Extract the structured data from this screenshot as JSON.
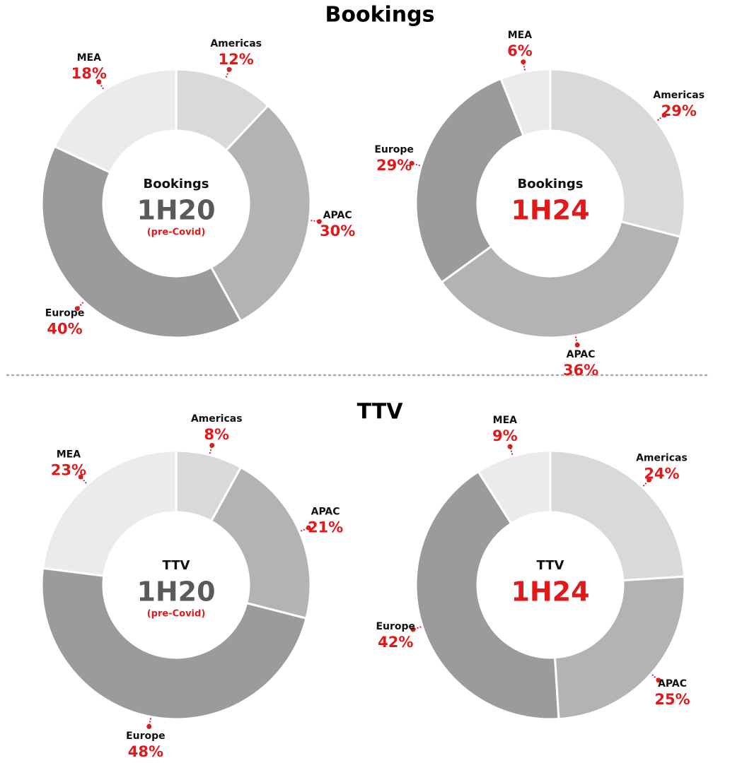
{
  "section_titles": [
    "Bookings",
    "TTV"
  ],
  "chart_data": [
    {
      "type": "donut",
      "center_title": "Bookings",
      "center_label": "1H20",
      "center_note": "(pre-Covid)",
      "center_label_color": "#5a5a5a",
      "categories": [
        "Americas",
        "APAC",
        "Europe",
        "MEA"
      ],
      "values": [
        12,
        30,
        40,
        18
      ],
      "value_labels": [
        "12%",
        "30%",
        "40%",
        "18%"
      ],
      "colors": [
        "#d9d9d9",
        "#b3b3b3",
        "#9b9b9b",
        "#ebebeb"
      ]
    },
    {
      "type": "donut",
      "center_title": "Bookings",
      "center_label": "1H24",
      "center_label_color": "#e0191b",
      "categories": [
        "Americas",
        "APAC",
        "Europe",
        "MEA"
      ],
      "values": [
        29,
        36,
        29,
        6
      ],
      "value_labels": [
        "29%",
        "36%",
        "29%",
        "6%"
      ],
      "colors": [
        "#d9d9d9",
        "#b3b3b3",
        "#9b9b9b",
        "#ebebeb"
      ]
    },
    {
      "type": "donut",
      "center_title": "TTV",
      "center_label": "1H20",
      "center_note": "(pre-Covid)",
      "center_label_color": "#5a5a5a",
      "categories": [
        "Americas",
        "APAC",
        "Europe",
        "MEA"
      ],
      "values": [
        8,
        21,
        48,
        23
      ],
      "value_labels": [
        "8%",
        "21%",
        "48%",
        "23%"
      ],
      "colors": [
        "#d9d9d9",
        "#b3b3b3",
        "#9b9b9b",
        "#ebebeb"
      ]
    },
    {
      "type": "donut",
      "center_title": "TTV",
      "center_label": "1H24",
      "center_label_color": "#e0191b",
      "categories": [
        "Americas",
        "APAC",
        "Europe",
        "MEA"
      ],
      "values": [
        24,
        25,
        42,
        9
      ],
      "value_labels": [
        "24%",
        "25%",
        "42%",
        "9%"
      ],
      "colors": [
        "#d9d9d9",
        "#b3b3b3",
        "#9b9b9b",
        "#ebebeb"
      ]
    }
  ]
}
